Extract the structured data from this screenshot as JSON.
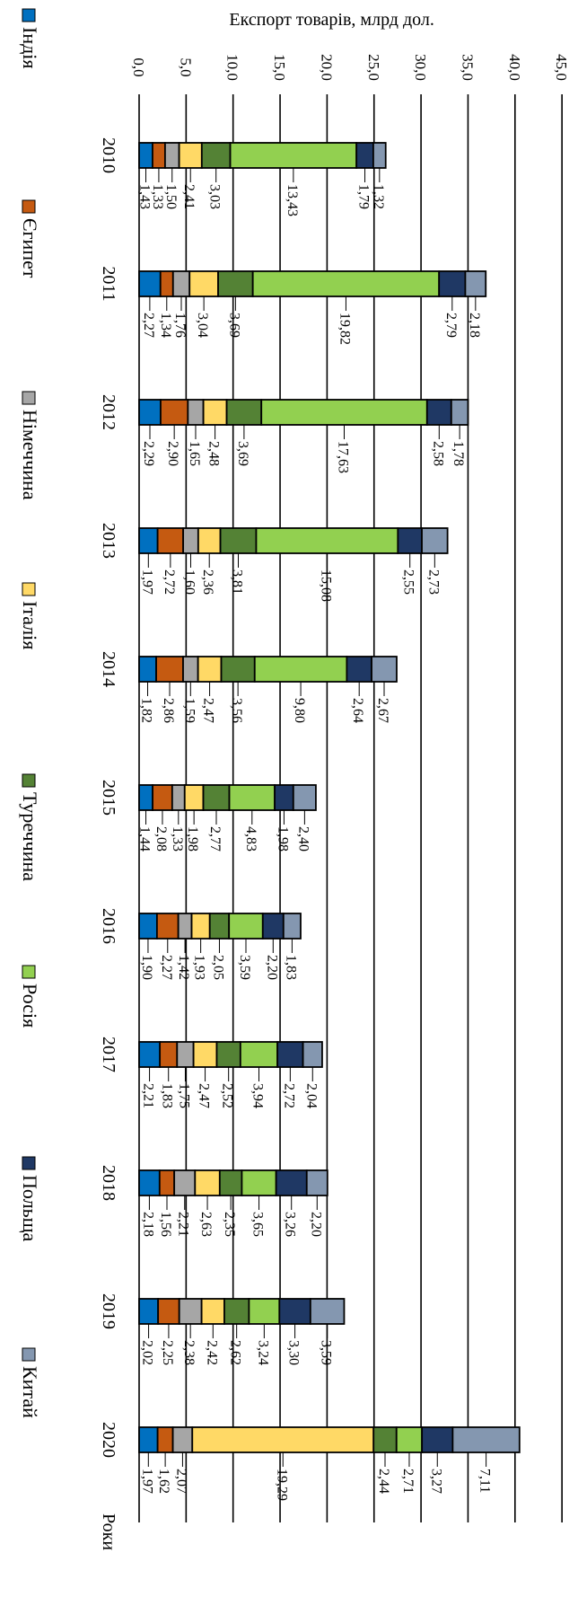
{
  "chart_data": {
    "type": "bar",
    "stacked": true,
    "orientation": "rotated",
    "ylabel": "Експорт товарів, млрд дол.",
    "xlabel": "Роки",
    "ylim": [
      0,
      45
    ],
    "yticks": [
      "0,0",
      "5,0",
      "10,0",
      "15,0",
      "20,0",
      "25,0",
      "30,0",
      "35,0",
      "40,0",
      "45,0"
    ],
    "categories": [
      "2010",
      "2011",
      "2012",
      "2013",
      "2014",
      "2015",
      "2016",
      "2017",
      "2018",
      "2019",
      "2020"
    ],
    "grid": true,
    "legend_position": "bottom",
    "series": [
      {
        "name": "Індія",
        "color": "#0070c0",
        "values": [
          1.43,
          2.27,
          2.29,
          1.97,
          1.82,
          1.44,
          1.9,
          2.21,
          2.18,
          2.02,
          1.97
        ],
        "labels": [
          "1,43",
          "2,27",
          "2,29",
          "1,97",
          "1,82",
          "1,44",
          "1,90",
          "2,21",
          "2,18",
          "2,02",
          "1,97"
        ]
      },
      {
        "name": "Єгипет",
        "color": "#c55a11",
        "values": [
          1.33,
          1.34,
          2.9,
          2.72,
          2.86,
          2.08,
          2.27,
          1.83,
          1.56,
          2.25,
          1.62
        ],
        "labels": [
          "1,33",
          "1,34",
          "2,90",
          "2,72",
          "2,86",
          "2,08",
          "2,27",
          "1,83",
          "1,56",
          "2,25",
          "1,62"
        ]
      },
      {
        "name": "Німеччина",
        "color": "#a6a6a6",
        "values": [
          1.5,
          1.76,
          1.65,
          1.6,
          1.59,
          1.33,
          1.42,
          1.75,
          2.21,
          2.38,
          2.07
        ],
        "labels": [
          "1,50",
          "1,76",
          "1,65",
          "1,60",
          "1,59",
          "1,33",
          "1,42",
          "1,75",
          "2,21",
          "2,38",
          "2,07"
        ]
      },
      {
        "name": "Італія",
        "color": "#ffd966",
        "values": [
          2.41,
          3.04,
          2.48,
          2.36,
          2.47,
          1.98,
          1.93,
          2.47,
          2.63,
          2.42,
          19.29
        ],
        "labels": [
          "2,41",
          "3,04",
          "2,48",
          "2,36",
          "2,47",
          "1,98",
          "1,93",
          "2,47",
          "2,63",
          "2,42",
          "19,29"
        ]
      },
      {
        "name": "Туреччина",
        "color": "#548235",
        "values": [
          3.03,
          3.69,
          3.69,
          3.81,
          3.56,
          2.77,
          2.05,
          2.52,
          2.35,
          2.62,
          2.44
        ],
        "labels": [
          "3,03",
          "3,69",
          "3,69",
          "3,81",
          "3,56",
          "2,77",
          "2,05",
          "2,52",
          "2,35",
          "2,62",
          "2,44"
        ]
      },
      {
        "name": "Росія",
        "color": "#92d050",
        "values": [
          13.43,
          19.82,
          17.63,
          15.08,
          9.8,
          4.83,
          3.59,
          3.94,
          3.65,
          3.24,
          2.71
        ],
        "labels": [
          "13,43",
          "19,82",
          "17,63",
          "15,08",
          "9,80",
          "4,83",
          "3,59",
          "3,94",
          "3,65",
          "3,24",
          "2,71"
        ]
      },
      {
        "name": "Польща",
        "color": "#1f3864",
        "values": [
          1.79,
          2.79,
          2.58,
          2.55,
          2.64,
          1.98,
          2.2,
          2.72,
          3.26,
          3.3,
          3.27
        ],
        "labels": [
          "1,79",
          "2,79",
          "2,58",
          "2,55",
          "2,64",
          "1,98",
          "2,20",
          "2,72",
          "3,26",
          "3,30",
          "3,27"
        ]
      },
      {
        "name": "Китай",
        "color": "#8497b0",
        "values": [
          1.32,
          2.18,
          1.78,
          2.73,
          2.67,
          2.4,
          1.83,
          2.04,
          2.2,
          3.59,
          7.11
        ],
        "labels": [
          "1,32",
          "2,18",
          "1,78",
          "2,73",
          "2,67",
          "2,40",
          "1,83",
          "2,04",
          "2,20",
          "3,59",
          "7,11"
        ]
      }
    ]
  }
}
